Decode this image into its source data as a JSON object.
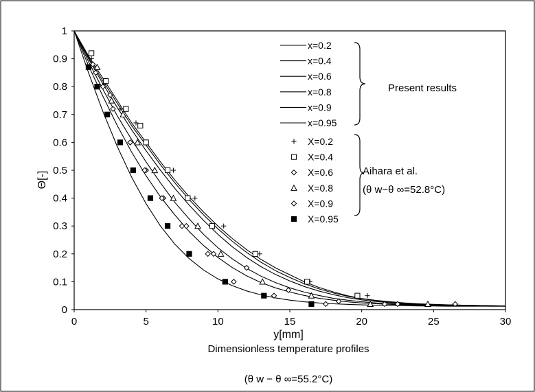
{
  "chart_data": {
    "type": "scatter",
    "title": "Dimensionless temperature profiles",
    "subtitle": "(θ w − θ ∞=55.2°C)",
    "xlabel": "y[mm]",
    "ylabel": "Θ[-]",
    "xlim": [
      0,
      30
    ],
    "ylim": [
      0,
      1
    ],
    "xticks": [
      0,
      5,
      10,
      15,
      20,
      25,
      30
    ],
    "yticks": [
      0,
      0.1,
      0.2,
      0.3,
      0.4,
      0.5,
      0.6,
      0.7,
      0.8,
      0.9,
      1
    ],
    "grid": false,
    "legend_position": "top-right",
    "line_group_label": "Present results",
    "marker_group_label": "Aihara et al.",
    "marker_group_condition": "(θ w−θ ∞=52.8°C)",
    "lines": [
      {
        "name": "x=0.2",
        "x": [
          0,
          1,
          2,
          3,
          4,
          5,
          6,
          7,
          8,
          9,
          10,
          11,
          12,
          13,
          14,
          15,
          16,
          17,
          18,
          19,
          20,
          21,
          22,
          23,
          24,
          25,
          26,
          27,
          28,
          29,
          30
        ],
        "y": [
          1.0,
          0.91,
          0.83,
          0.75,
          0.67,
          0.6,
          0.53,
          0.465,
          0.405,
          0.35,
          0.3,
          0.255,
          0.215,
          0.18,
          0.15,
          0.125,
          0.1,
          0.08,
          0.064,
          0.05,
          0.04,
          0.033,
          0.028,
          0.024,
          0.021,
          0.019,
          0.017,
          0.016,
          0.015,
          0.014,
          0.013
        ]
      },
      {
        "name": "x=0.4",
        "x": [
          0,
          1,
          2,
          3,
          4,
          5,
          6,
          7,
          8,
          9,
          10,
          11,
          12,
          13,
          14,
          15,
          16,
          17,
          18,
          19,
          20,
          21,
          22,
          23,
          24,
          25,
          26,
          27,
          28,
          29,
          30
        ],
        "y": [
          1.0,
          0.905,
          0.82,
          0.74,
          0.66,
          0.59,
          0.52,
          0.455,
          0.395,
          0.34,
          0.29,
          0.245,
          0.205,
          0.17,
          0.14,
          0.115,
          0.093,
          0.075,
          0.06,
          0.048,
          0.039,
          0.032,
          0.027,
          0.023,
          0.02,
          0.018,
          0.017,
          0.016,
          0.015,
          0.014,
          0.013
        ]
      },
      {
        "name": "x=0.6",
        "x": [
          0,
          1,
          2,
          3,
          4,
          5,
          6,
          7,
          8,
          9,
          10,
          11,
          12,
          13,
          14,
          15,
          16,
          17,
          18,
          19,
          20,
          21,
          22,
          23,
          24,
          25,
          26,
          27,
          28,
          29,
          30
        ],
        "y": [
          1.0,
          0.9,
          0.81,
          0.725,
          0.645,
          0.57,
          0.5,
          0.435,
          0.375,
          0.32,
          0.27,
          0.225,
          0.187,
          0.154,
          0.126,
          0.103,
          0.083,
          0.067,
          0.054,
          0.043,
          0.035,
          0.029,
          0.025,
          0.021,
          0.019,
          0.017,
          0.016,
          0.015,
          0.014,
          0.013,
          0.013
        ]
      },
      {
        "name": "x=0.8",
        "x": [
          0,
          1,
          2,
          3,
          4,
          5,
          6,
          7,
          8,
          9,
          10,
          11,
          12,
          13,
          14,
          15,
          16,
          17,
          18,
          19,
          20,
          21,
          22,
          23,
          24,
          25,
          26,
          27,
          28,
          29,
          30
        ],
        "y": [
          1.0,
          0.89,
          0.79,
          0.695,
          0.61,
          0.53,
          0.455,
          0.385,
          0.325,
          0.27,
          0.222,
          0.182,
          0.148,
          0.12,
          0.097,
          0.078,
          0.063,
          0.051,
          0.041,
          0.034,
          0.028,
          0.024,
          0.021,
          0.019,
          0.017,
          0.016,
          0.015,
          0.014,
          0.013,
          0.013,
          0.012
        ]
      },
      {
        "name": "x=0.9",
        "x": [
          0,
          1,
          2,
          3,
          4,
          5,
          6,
          7,
          8,
          9,
          10,
          11,
          12,
          13,
          14,
          15,
          16,
          17,
          18,
          19,
          20,
          21,
          22,
          23,
          24,
          25,
          26,
          27,
          28,
          29,
          30
        ],
        "y": [
          1.0,
          0.875,
          0.765,
          0.66,
          0.565,
          0.48,
          0.405,
          0.34,
          0.28,
          0.23,
          0.187,
          0.151,
          0.121,
          0.097,
          0.078,
          0.063,
          0.051,
          0.041,
          0.034,
          0.028,
          0.024,
          0.021,
          0.019,
          0.017,
          0.016,
          0.015,
          0.014,
          0.013,
          0.013,
          0.012,
          0.012
        ]
      },
      {
        "name": "x=0.95",
        "x": [
          0,
          1,
          2,
          3,
          4,
          5,
          6,
          7,
          8,
          9,
          10,
          11,
          12,
          13,
          14,
          15,
          16,
          17,
          18,
          19,
          20,
          21,
          22,
          23,
          24,
          25,
          26,
          27,
          28,
          29,
          30
        ],
        "y": [
          1.0,
          0.85,
          0.71,
          0.585,
          0.475,
          0.38,
          0.3,
          0.235,
          0.183,
          0.142,
          0.11,
          0.086,
          0.067,
          0.053,
          0.042,
          0.034,
          0.028,
          0.024,
          0.021,
          0.019,
          0.017,
          0.016,
          0.015,
          0.014,
          0.013,
          0.013,
          0.012,
          0.012,
          0.012,
          0.012,
          0.012
        ]
      }
    ],
    "markers": [
      {
        "name": "X=0.2",
        "marker": "plus",
        "x": [
          1.2,
          2.1,
          3.2,
          4.3,
          6.9,
          8.4,
          10.4,
          12.9,
          16.4,
          20.4
        ],
        "y": [
          0.9,
          0.81,
          0.72,
          0.67,
          0.5,
          0.4,
          0.3,
          0.2,
          0.1,
          0.05
        ]
      },
      {
        "name": "X=0.4",
        "marker": "square-open",
        "x": [
          1.2,
          2.2,
          3.6,
          4.6,
          5.0,
          6.5,
          7.9,
          9.6,
          12.6,
          16.2,
          19.7
        ],
        "y": [
          0.92,
          0.82,
          0.72,
          0.66,
          0.6,
          0.5,
          0.4,
          0.3,
          0.2,
          0.1,
          0.05
        ]
      },
      {
        "name": "X=0.6",
        "marker": "diamond-open",
        "x": [
          1.3,
          2.0,
          2.5,
          3.9,
          5.0,
          6.2,
          7.8,
          9.7,
          12.0,
          14.9,
          18.4,
          22.5
        ],
        "y": [
          0.88,
          0.8,
          0.77,
          0.6,
          0.5,
          0.4,
          0.3,
          0.2,
          0.15,
          0.07,
          0.03,
          0.02
        ]
      },
      {
        "name": "X=0.8",
        "marker": "triangle-open",
        "x": [
          1.6,
          2.6,
          3.4,
          4.4,
          5.6,
          6.9,
          8.6,
          10.2,
          13.1,
          16.5,
          20.6,
          24.6
        ],
        "y": [
          0.87,
          0.75,
          0.7,
          0.6,
          0.5,
          0.4,
          0.3,
          0.2,
          0.1,
          0.05,
          0.02,
          0.02
        ]
      },
      {
        "name": "X=0.9",
        "marker": "diamond-open",
        "x": [
          1.5,
          2.7,
          3.9,
          4.9,
          6.1,
          7.5,
          9.3,
          11.1,
          13.9,
          17.5,
          21.6,
          26.5
        ],
        "y": [
          0.85,
          0.72,
          0.6,
          0.5,
          0.4,
          0.3,
          0.2,
          0.1,
          0.05,
          0.02,
          0.02,
          0.02
        ]
      },
      {
        "name": "X=0.95",
        "marker": "square-filled",
        "x": [
          1.0,
          1.6,
          2.3,
          3.2,
          4.1,
          5.3,
          6.5,
          8.0,
          10.5,
          13.2,
          16.5
        ],
        "y": [
          0.87,
          0.8,
          0.7,
          0.6,
          0.5,
          0.4,
          0.3,
          0.2,
          0.1,
          0.05,
          0.02
        ]
      }
    ]
  }
}
